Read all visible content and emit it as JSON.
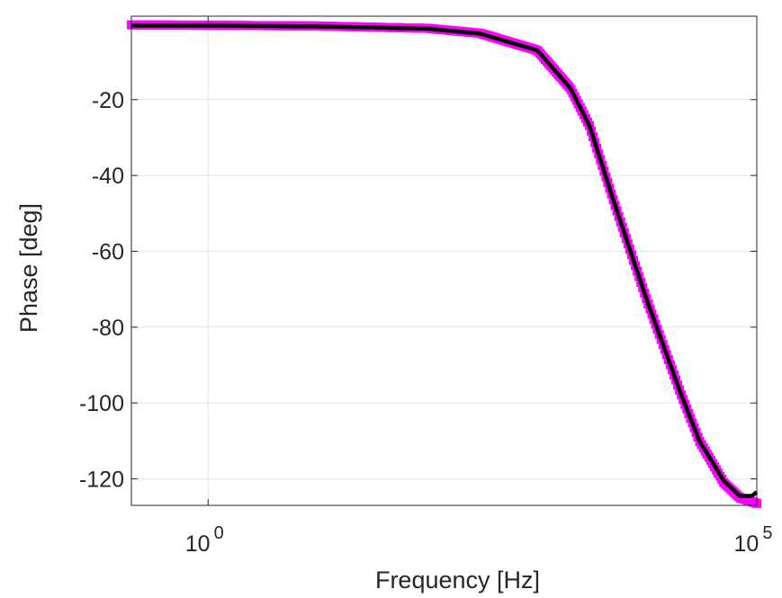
{
  "chart_data": {
    "type": "line",
    "title": "",
    "xlabel": "Frequency [Hz]",
    "ylabel": "Phase [deg]",
    "xscale": "log",
    "xlim": [
      0.2,
      100000
    ],
    "ylim": [
      -127,
      2
    ],
    "grid": true,
    "x_ticks": [
      {
        "value": 1,
        "base": "10",
        "exp": "0"
      },
      {
        "value": 100000,
        "base": "10",
        "exp": "5"
      }
    ],
    "y_ticks": [
      {
        "value": -20,
        "label": "-20"
      },
      {
        "value": -40,
        "label": "-40"
      },
      {
        "value": -60,
        "label": "-60"
      },
      {
        "value": -80,
        "label": "-80"
      },
      {
        "value": -100,
        "label": "-100"
      },
      {
        "value": -120,
        "label": "-120"
      }
    ],
    "series": [
      {
        "style": "markers",
        "color": "#ff00ff",
        "x": [
          0.2,
          1,
          10,
          100,
          300,
          1000,
          2000,
          3000,
          5000,
          10000,
          20000,
          30000,
          50000,
          70000,
          90000,
          100000
        ],
        "y": [
          -0.3,
          -0.4,
          -0.6,
          -1.2,
          -2.5,
          -7,
          -17,
          -27,
          -47,
          -73,
          -97,
          -110,
          -121,
          -125,
          -126,
          -126.5
        ]
      },
      {
        "style": "line",
        "color": "#000000",
        "x": [
          0.2,
          1,
          10,
          100,
          300,
          1000,
          2000,
          3000,
          5000,
          10000,
          20000,
          30000,
          50000,
          70000,
          90000,
          100000
        ],
        "y": [
          -0.5,
          -0.5,
          -0.7,
          -1.3,
          -2.6,
          -7,
          -17,
          -27,
          -47,
          -73,
          -97,
          -110,
          -120.5,
          -124.5,
          -124.5,
          -123.5
        ]
      }
    ]
  }
}
